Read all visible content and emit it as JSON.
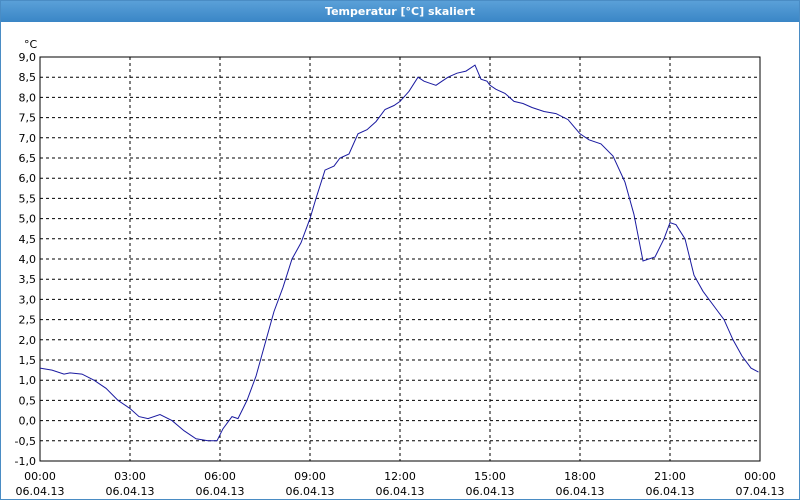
{
  "window": {
    "title": "Temperatur [°C] skaliert"
  },
  "colors": {
    "line": "#1a1aa0",
    "grid": "#000000",
    "titlebar": "#4a8cc4"
  },
  "chart_data": {
    "type": "line",
    "title": "Temperatur [°C] skaliert",
    "ylabel": "°C",
    "xlabel": "",
    "ylim": [
      -1.0,
      9.0
    ],
    "xlim_hours": [
      0,
      24
    ],
    "grid": true,
    "y_ticks": [
      "9,0",
      "8,5",
      "8,0",
      "7,5",
      "7,0",
      "6,5",
      "6,0",
      "5,5",
      "5,0",
      "4,5",
      "4,0",
      "3,5",
      "3,0",
      "2,5",
      "2,0",
      "1,5",
      "1,0",
      "0,5",
      "0,0",
      "-0,5",
      "-1,0"
    ],
    "x_ticks": [
      {
        "time": "00:00",
        "date": "06.04.13"
      },
      {
        "time": "03:00",
        "date": "06.04.13"
      },
      {
        "time": "06:00",
        "date": "06.04.13"
      },
      {
        "time": "09:00",
        "date": "06.04.13"
      },
      {
        "time": "12:00",
        "date": "06.04.13"
      },
      {
        "time": "15:00",
        "date": "06.04.13"
      },
      {
        "time": "18:00",
        "date": "06.04.13"
      },
      {
        "time": "21:00",
        "date": "06.04.13"
      },
      {
        "time": "00:00",
        "date": "07.04.13"
      }
    ],
    "series": [
      {
        "x": [
          0,
          0.4,
          0.8,
          1.0,
          1.4,
          1.8,
          2.2,
          2.6,
          3.0,
          3.3,
          3.6,
          4.0,
          4.4,
          4.8,
          5.2,
          5.6,
          5.9,
          6.1,
          6.4,
          6.6,
          6.9,
          7.2,
          7.5,
          7.8,
          8.1,
          8.4,
          8.7,
          9.0,
          9.2,
          9.5,
          9.8,
          10.0,
          10.3,
          10.6,
          10.9,
          11.2,
          11.5,
          11.8,
          12.0,
          12.3,
          12.6,
          12.8,
          13.0,
          13.2,
          13.4,
          13.6,
          13.9,
          14.2,
          14.5,
          14.7,
          14.9,
          15.0,
          15.2,
          15.5,
          15.8,
          16.1,
          16.4,
          16.8,
          17.2,
          17.6,
          18.0,
          18.3,
          18.7,
          19.1,
          19.5,
          19.8,
          20.1,
          20.5,
          20.8,
          21.0,
          21.2,
          21.5,
          21.8,
          22.1,
          22.5,
          22.8,
          23.1,
          23.4,
          23.7,
          23.95
        ],
        "y": [
          1.3,
          1.25,
          1.15,
          1.18,
          1.15,
          1.0,
          0.8,
          0.5,
          0.3,
          0.1,
          0.05,
          0.15,
          0.0,
          -0.25,
          -0.45,
          -0.5,
          -0.5,
          -0.2,
          0.1,
          0.05,
          0.5,
          1.1,
          1.9,
          2.7,
          3.3,
          4.0,
          4.4,
          5.0,
          5.5,
          6.2,
          6.3,
          6.5,
          6.6,
          7.1,
          7.2,
          7.4,
          7.7,
          7.8,
          7.9,
          8.15,
          8.5,
          8.4,
          8.35,
          8.3,
          8.4,
          8.5,
          8.6,
          8.65,
          8.8,
          8.45,
          8.4,
          8.3,
          8.2,
          8.1,
          7.9,
          7.85,
          7.75,
          7.65,
          7.6,
          7.45,
          7.1,
          6.95,
          6.85,
          6.55,
          5.9,
          5.1,
          3.95,
          4.05,
          4.5,
          4.9,
          4.85,
          4.5,
          3.6,
          3.2,
          2.8,
          2.5,
          2.0,
          1.6,
          1.3,
          1.2
        ]
      }
    ]
  }
}
